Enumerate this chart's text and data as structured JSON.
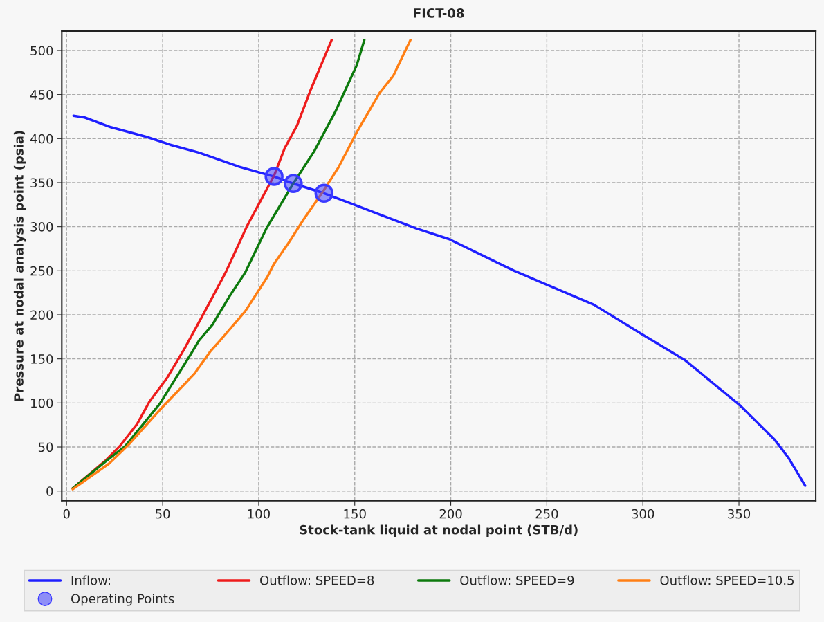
{
  "chart_data": {
    "type": "line",
    "title": "FICT-08",
    "xlabel": "Stock-tank liquid at nodal point (STB/d)",
    "ylabel": "Pressure at nodal analysis point (psia)",
    "xlim": [
      -2.5,
      390
    ],
    "ylim": [
      -11,
      522
    ],
    "xticks": [
      0,
      50,
      100,
      150,
      200,
      250,
      300,
      350
    ],
    "yticks": [
      0,
      50,
      100,
      150,
      200,
      250,
      300,
      350,
      400,
      450,
      500
    ],
    "grid": true,
    "legend": "bottom",
    "line_style": "solid",
    "series": [
      {
        "name": "Inflow:",
        "color": "#1f1fff",
        "x": [
          3.6,
          9.4,
          23,
          41.5,
          54,
          69,
          90,
          108,
          118,
          134,
          164,
          182,
          199,
          233,
          274.5,
          298.7,
          321.6,
          350.7,
          368.7,
          376,
          384.5
        ],
        "values": [
          426,
          424,
          413,
          402,
          393,
          384,
          368,
          357,
          349,
          338,
          313,
          298,
          286,
          250,
          211.5,
          179,
          149,
          97,
          58,
          37,
          6
        ]
      },
      {
        "name": "Outflow: SPEED=8",
        "color": "#ee1c1c",
        "x": [
          3.2,
          20,
          27.7,
          36.7,
          43,
          52.5,
          61.5,
          70.5,
          83,
          94,
          108,
          113.5,
          120,
          127,
          138
        ],
        "values": [
          3,
          34,
          51,
          76,
          101,
          129,
          162,
          198,
          249,
          301,
          358,
          389,
          415,
          455,
          512
        ]
      },
      {
        "name": "Outflow: SPEED=9",
        "color": "#0d7a0d",
        "x": [
          3.2,
          20,
          30.5,
          48.5,
          64,
          69,
          76,
          84.5,
          93,
          104,
          118,
          129,
          140,
          151,
          155
        ],
        "values": [
          3,
          33,
          51,
          99,
          153,
          171,
          189,
          220,
          248,
          298,
          349,
          386,
          431,
          483,
          512
        ]
      },
      {
        "name": "Outflow: SPEED=10.5",
        "color": "#ff7f14",
        "x": [
          3.2,
          22,
          32,
          48.5,
          66.5,
          75,
          80,
          93,
          104.5,
          108,
          116,
          123,
          133.5,
          141.7,
          151,
          163,
          170,
          179
        ],
        "values": [
          2,
          31,
          52,
          92,
          133,
          159,
          171,
          204,
          243,
          258,
          283,
          307,
          340,
          368,
          407,
          452,
          471,
          512
        ]
      },
      {
        "name": "Operating Points",
        "type": "scatter",
        "marker": "circle",
        "color": "#3a3aff",
        "x": [
          108,
          118,
          134
        ],
        "values": [
          357,
          349,
          338
        ]
      }
    ]
  }
}
